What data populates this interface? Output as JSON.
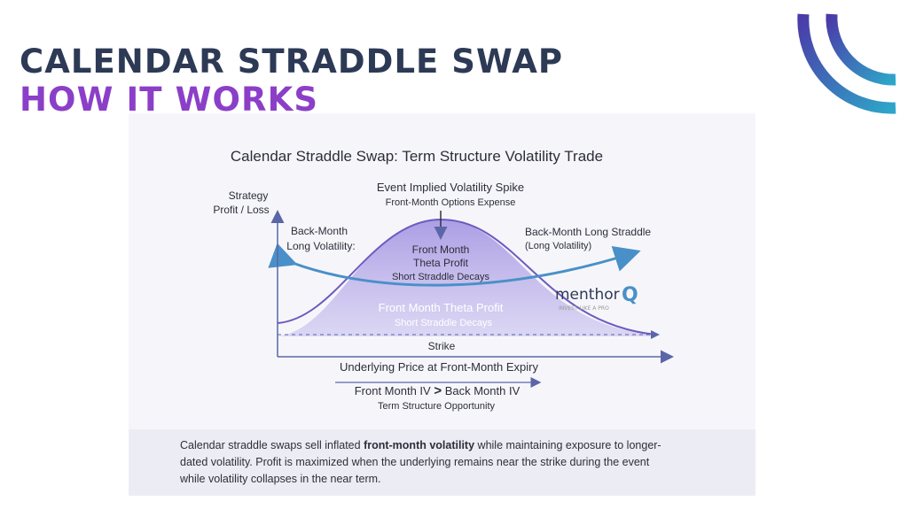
{
  "header": {
    "title": "CALENDAR STRADDLE SWAP",
    "subtitle": "HOW IT WORKS"
  },
  "diagram": {
    "title": "Calendar Straddle Swap: Term Structure Volatility Trade",
    "y_axis_label": [
      "Strategy",
      "Profit / Loss"
    ],
    "spike": {
      "title": "Event Implied Volatility Spike",
      "subtitle": "Front-Month Options Expense"
    },
    "left_label": [
      "Back-Month",
      "Long Volatility:"
    ],
    "right_label": {
      "title": "Back-Month Long Straddle",
      "subtitle": "(Long Volatility)"
    },
    "peak_label": {
      "title": [
        "Front Month",
        "Theta Profit"
      ],
      "subtitle": "Short Straddle Decays"
    },
    "area_label": {
      "title": "Front Month Theta Profit",
      "subtitle": "Short Straddle Decays"
    },
    "logo": {
      "name": "menthor",
      "mark": "Q",
      "tagline": "INVEST LIKE A PRO"
    },
    "strike_label": "Strike",
    "x_axis_label": "Underlying Price at Front-Month Expiry",
    "condition": {
      "left": "Front Month IV",
      "symbol": ">",
      "right": "Back Month IV",
      "subtitle": "Term Structure Opportunity"
    }
  },
  "caption": {
    "lines": [
      [
        "Calendar straddle swaps sell inflated ",
        "front-month volatility",
        " while maintaining exposure to longer-"
      ],
      [
        "dated volatility. Profit is maximized when the underlying remains near the strike during the event"
      ],
      [
        "while volatility collapses in the near term."
      ]
    ]
  }
}
